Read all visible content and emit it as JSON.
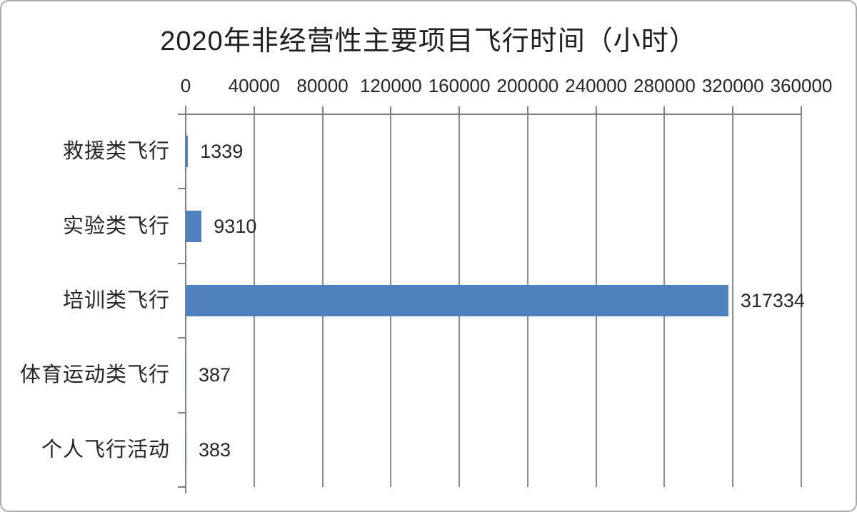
{
  "frame": {
    "background_color": "#ffffff",
    "border_color": "#ababab"
  },
  "chart_data": {
    "type": "bar",
    "orientation": "horizontal",
    "title": "2020年非经营性主要项目飞行时间（小时）",
    "categories": [
      "救援类飞行",
      "实验类飞行",
      "培训类飞行",
      "体育运动类飞行",
      "个人飞行活动"
    ],
    "values": [
      1339,
      9310,
      317334,
      387,
      383
    ],
    "data_labels": [
      "1339",
      "9310",
      "317334",
      "387",
      "383"
    ],
    "xlabel": "",
    "ylabel": "",
    "xlim": [
      0,
      360000
    ],
    "x_ticks": [
      0,
      40000,
      80000,
      120000,
      160000,
      200000,
      240000,
      280000,
      320000,
      360000
    ],
    "x_tick_labels": [
      "0",
      "40000",
      "80000",
      "120000",
      "160000",
      "200000",
      "240000",
      "280000",
      "320000",
      "360000"
    ],
    "x_axis_position": "top",
    "grid": true,
    "legend_position": "none",
    "bar_color": "#4e81bd",
    "gridline_color": "#8b8b8b",
    "axis_color": "#7f7f7f",
    "text_color": "#262626"
  }
}
